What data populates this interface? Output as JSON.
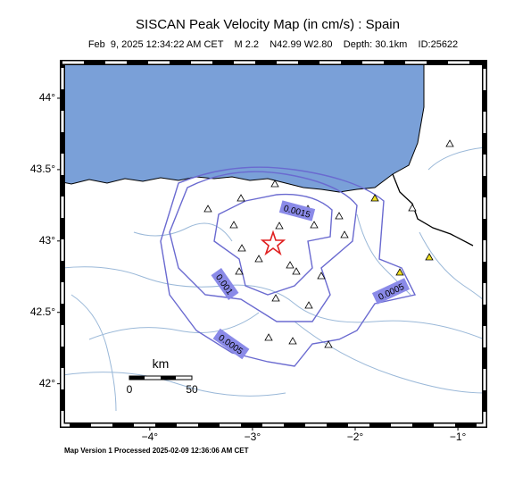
{
  "header": {
    "title": "SISCAN Peak Velocity Map (in cm/s) : Spain",
    "subtitle": "Feb  9, 2025 12:34:22 AM CET    M 2.2    N42.99 W2.80    Depth: 30.1km    ID:25622"
  },
  "map": {
    "lat_range": [
      41.71,
      44.25
    ],
    "lon_range": [
      -4.85,
      -0.74
    ],
    "lat_ticks": [
      {
        "value": 44,
        "label": "44°"
      },
      {
        "value": 43.5,
        "label": "43.5°"
      },
      {
        "value": 43,
        "label": "43°"
      },
      {
        "value": 42.5,
        "label": "42.5°"
      },
      {
        "value": 42,
        "label": "42°"
      }
    ],
    "lon_ticks": [
      {
        "value": -4,
        "label": "−4°"
      },
      {
        "value": -3,
        "label": "−3°"
      },
      {
        "value": -2,
        "label": "−2°"
      },
      {
        "value": -1,
        "label": "−1°"
      }
    ],
    "contour_labels": [
      "0.0015",
      "0.001",
      "0.0005",
      "0.0005"
    ],
    "scale_bar": {
      "unit": "km",
      "start": "0",
      "end": "50"
    }
  },
  "footer": "Map Version 1 Processed 2025-02-09 12:36:06 AM CET"
}
